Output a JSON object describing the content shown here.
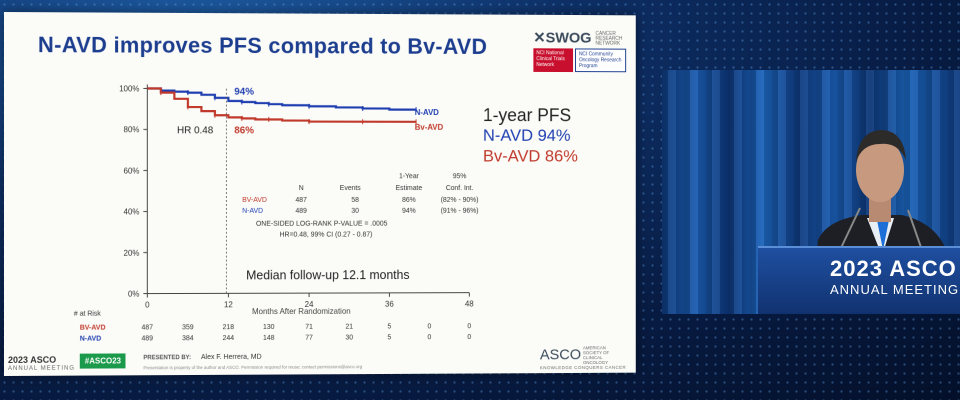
{
  "slide": {
    "title": "N-AVD improves PFS compared to Bv-AVD",
    "logo": {
      "swog": "SWOG",
      "swog_sub": "CANCER RESEARCH NETWORK",
      "nci1": "NCI National Clinical Trials Network",
      "nci2": "NCI Community Oncology Research Program"
    },
    "summary": {
      "heading": "1-year PFS",
      "navd_line": "N-AVD 94%",
      "bvavd_line": "Bv-AVD 86%"
    },
    "colors": {
      "navd": "#1f3fb0",
      "bvavd": "#c0392b",
      "title": "#1d3e8f"
    }
  },
  "chart_data": {
    "type": "line",
    "xlabel": "Months After Randomization",
    "ylabel": "",
    "x_ticks": [
      "0",
      "12",
      "24",
      "36",
      "48"
    ],
    "y_ticks": [
      "0%",
      "20%",
      "40%",
      "60%",
      "80%",
      "100%"
    ],
    "xlim": [
      0,
      48
    ],
    "ylim": [
      0,
      100
    ],
    "series": [
      {
        "name": "N-AVD",
        "color": "#1f3fb0",
        "x": [
          0,
          2,
          4,
          6,
          8,
          10,
          12,
          14,
          16,
          18,
          20,
          24,
          28,
          32,
          36,
          40
        ],
        "y": [
          100,
          99,
          98.5,
          98,
          97,
          95.5,
          94,
          93.5,
          93,
          92.5,
          92,
          91.5,
          91,
          90.5,
          90,
          90
        ]
      },
      {
        "name": "Bv-AVD",
        "color": "#c0392b",
        "x": [
          0,
          2,
          4,
          6,
          8,
          10,
          12,
          14,
          16,
          18,
          20,
          24,
          28,
          32,
          36,
          40
        ],
        "y": [
          100,
          98,
          95,
          91,
          89,
          87,
          86,
          85.5,
          85,
          85,
          84.5,
          84,
          84,
          84,
          84,
          84
        ]
      }
    ],
    "annotations": {
      "navd_pct": "94%",
      "bvavd_pct": "86%",
      "hr": "HR 0.48",
      "navd_label": "N-AVD",
      "bvavd_label": "Bv-AVD",
      "median": "Median follow-up 12.1 months"
    },
    "stats_table": {
      "headers": [
        "N",
        "Events",
        "1-Year Estimate",
        "95% Conf. Int."
      ],
      "rows": [
        {
          "arm": "BV-AVD",
          "n": "487",
          "events": "58",
          "est": "86%",
          "ci": "(82% - 90%)"
        },
        {
          "arm": "N-AVD",
          "n": "489",
          "events": "30",
          "est": "94%",
          "ci": "(91% - 96%)"
        }
      ],
      "pvalue": "ONE-SIDED LOG-RANK P-VALUE = .0005",
      "hr_line": "HR=0.48, 99% CI (0.27 - 0.87)"
    },
    "at_risk": {
      "label": "# at Risk",
      "rows": [
        {
          "arm": "BV-AVD",
          "values": [
            "487",
            "359",
            "218",
            "130",
            "71",
            "21",
            "5",
            "0",
            "0"
          ]
        },
        {
          "arm": "N-AVD",
          "values": [
            "489",
            "384",
            "244",
            "148",
            "77",
            "30",
            "5",
            "0",
            "0"
          ]
        }
      ]
    }
  },
  "footer": {
    "meeting": "2023 ASCO",
    "meeting_sub": "ANNUAL MEETING",
    "hashtag": "#ASCO23",
    "presented_by": "PRESENTED BY:",
    "presenter": "Alex F. Herrera, MD",
    "note": "Presentation is property of the author and ASCO. Permission required for reuse; contact permissions@asco.org",
    "asco": "ASCO",
    "asco_sub": "AMERICAN SOCIETY OF CLINICAL ONCOLOGY",
    "asco_tag": "KNOWLEDGE CONQUERS CANCER"
  },
  "podium": {
    "line1": "2023 ASCO",
    "line2": "ANNUAL MEETING"
  }
}
